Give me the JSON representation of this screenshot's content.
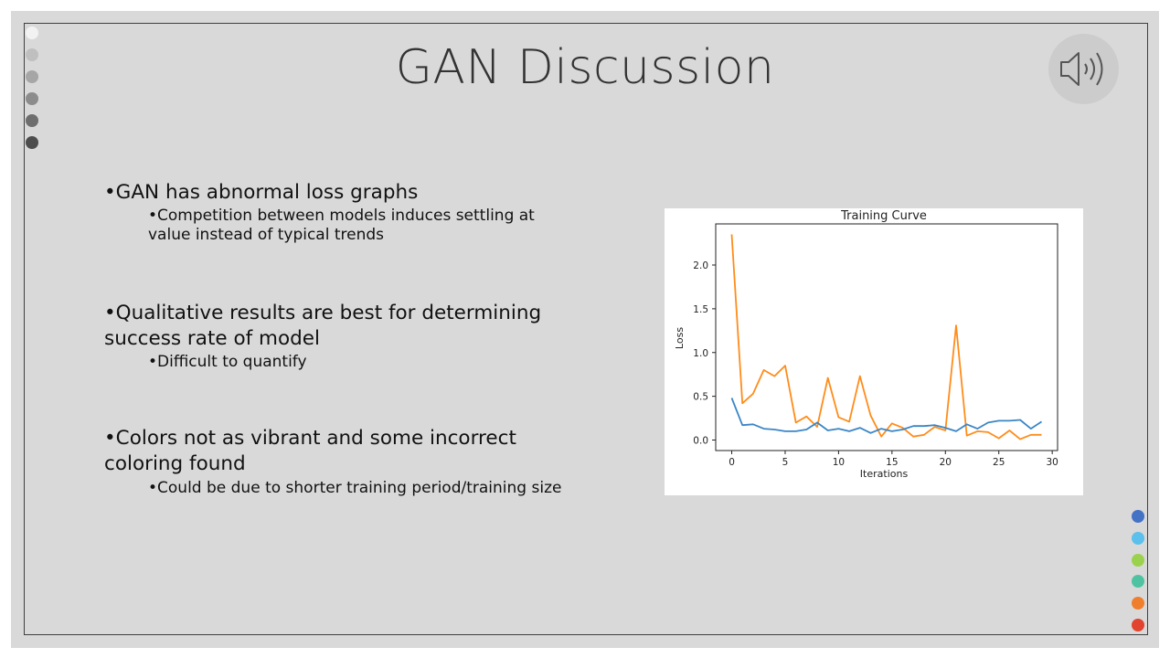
{
  "slide": {
    "title": "GAN Discussion",
    "bullets": [
      {
        "text": "•GAN has abnormal loss graphs",
        "sub": "•Competition between models induces settling at value instead of typical trends"
      },
      {
        "text": "•Qualitative results are best for determining success rate of model",
        "sub": "•Difficult to quantify"
      },
      {
        "text": "•Colors not as vibrant and some incorrect coloring found",
        "sub": "•Could be due to shorter training period/training size"
      }
    ],
    "colors": {
      "background": "#d9d9d9",
      "left_dots": [
        "#f2f2f2",
        "#bfbfbf",
        "#a6a6a6",
        "#8c8c8c",
        "#6e6e6e",
        "#4d4d4d"
      ],
      "right_dots": [
        "#4472c4",
        "#5bc0eb",
        "#9bd24d",
        "#4fc3a1",
        "#f07f2d",
        "#e2432f"
      ]
    },
    "icons": {
      "speaker": "speaker-volume-icon"
    }
  },
  "chart_data": {
    "type": "line",
    "title": "Training Curve",
    "xlabel": "Iterations",
    "ylabel": "Loss",
    "xlim": [
      -1.5,
      30.5
    ],
    "ylim": [
      -0.12,
      2.47
    ],
    "xticks": [
      0,
      5,
      10,
      15,
      20,
      25,
      30
    ],
    "xtick_labels": [
      "0",
      "5",
      "10",
      "15",
      "20",
      "25",
      "30"
    ],
    "yticks": [
      0.0,
      0.5,
      1.0,
      1.5,
      2.0
    ],
    "ytick_labels": [
      "0.0",
      "0.5",
      "1.0",
      "1.5",
      "2.0"
    ],
    "grid": false,
    "x": [
      0,
      1,
      2,
      3,
      4,
      5,
      6,
      7,
      8,
      9,
      10,
      11,
      12,
      13,
      14,
      15,
      16,
      17,
      18,
      19,
      20,
      21,
      22,
      23,
      24,
      25,
      26,
      27,
      28,
      29
    ],
    "series": [
      {
        "color": "#ff8c1a",
        "values": [
          2.35,
          0.42,
          0.53,
          0.8,
          0.73,
          0.85,
          0.2,
          0.27,
          0.15,
          0.71,
          0.26,
          0.21,
          0.73,
          0.28,
          0.04,
          0.19,
          0.14,
          0.04,
          0.06,
          0.15,
          0.11,
          1.31,
          0.05,
          0.1,
          0.09,
          0.02,
          0.11,
          0.01,
          0.06,
          0.06
        ]
      },
      {
        "color": "#3b86c6",
        "values": [
          0.48,
          0.17,
          0.18,
          0.13,
          0.12,
          0.1,
          0.1,
          0.12,
          0.2,
          0.11,
          0.13,
          0.1,
          0.14,
          0.08,
          0.13,
          0.1,
          0.12,
          0.16,
          0.16,
          0.17,
          0.14,
          0.1,
          0.18,
          0.13,
          0.2,
          0.22,
          0.22,
          0.23,
          0.13,
          0.21
        ]
      }
    ]
  }
}
